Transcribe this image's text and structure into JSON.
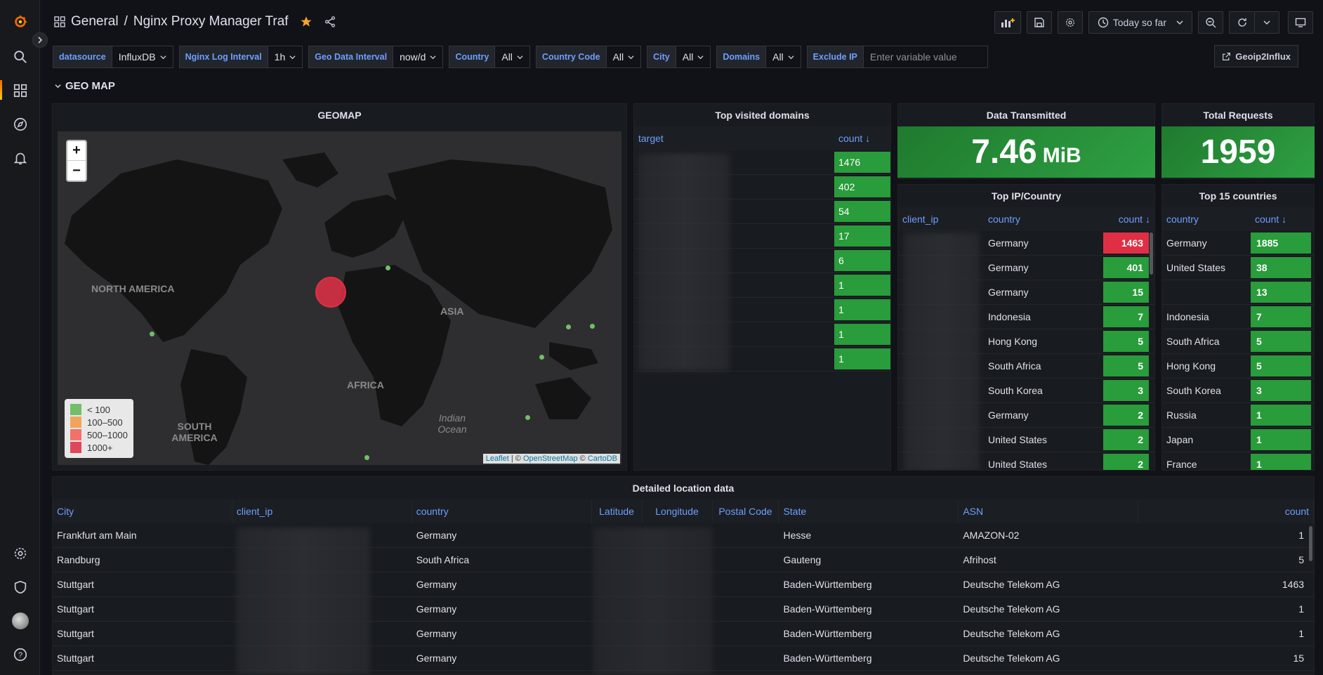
{
  "breadcrumb": {
    "folder": "General",
    "separator": "/",
    "title": "Nginx Proxy Manager Traf"
  },
  "toolbar": {
    "time_range": "Today so far"
  },
  "variables": [
    {
      "label": "datasource",
      "value": "InfluxDB"
    },
    {
      "label": "Nginx Log Interval",
      "value": "1h"
    },
    {
      "label": "Geo Data Interval",
      "value": "now/d"
    },
    {
      "label": "Country",
      "value": "All"
    },
    {
      "label": "Country Code",
      "value": "All"
    },
    {
      "label": "City",
      "value": "All"
    },
    {
      "label": "Domains",
      "value": "All"
    }
  ],
  "exclude_ip": {
    "label": "Exclude IP",
    "placeholder": "Enter variable value"
  },
  "link_button": "Geoip2Influx",
  "row_title": "GEO MAP",
  "geomap": {
    "title": "GEOMAP",
    "labels": {
      "north_america": "NORTH AMERICA",
      "south_america": "SOUTH AMERICA",
      "africa": "AFRICA",
      "asia": "ASIA",
      "indian_ocean": "Indian Ocean"
    },
    "legend": [
      {
        "label": "< 100",
        "color": "#73bf69"
      },
      {
        "label": "100–500",
        "color": "#f2a55a"
      },
      {
        "label": "500–1000",
        "color": "#f2716b"
      },
      {
        "label": "1000+",
        "color": "#e0475a"
      }
    ],
    "attribution": {
      "leaflet": "Leaflet",
      "osm": "OpenStreetMap",
      "carto": "CartoDB",
      "sep1": " | © ",
      "sep2": " © "
    }
  },
  "top_domains": {
    "title": "Top visited domains",
    "col_target": "target",
    "col_count": "count",
    "counts": [
      "1476",
      "402",
      "54",
      "17",
      "6",
      "1",
      "1",
      "1",
      "1"
    ]
  },
  "data_transmitted": {
    "title": "Data Transmitted",
    "value": "7.46",
    "unit": "MiB"
  },
  "total_requests": {
    "title": "Total Requests",
    "value": "1959"
  },
  "top_ip_country": {
    "title": "Top IP/Country",
    "col_ip": "client_ip",
    "col_country": "country",
    "col_count": "count",
    "rows": [
      {
        "country": "Germany",
        "count": "1463",
        "hot": true
      },
      {
        "country": "Germany",
        "count": "401"
      },
      {
        "country": "Germany",
        "count": "15"
      },
      {
        "country": "Indonesia",
        "count": "7"
      },
      {
        "country": "Hong Kong",
        "count": "5"
      },
      {
        "country": "South Africa",
        "count": "5"
      },
      {
        "country": "South Korea",
        "count": "3"
      },
      {
        "country": "Germany",
        "count": "2"
      },
      {
        "country": "United States",
        "count": "2"
      },
      {
        "country": "United States",
        "count": "2"
      }
    ]
  },
  "top_countries": {
    "title": "Top 15 countries",
    "col_country": "country",
    "col_count": "count",
    "rows": [
      {
        "country": "Germany",
        "count": "1885"
      },
      {
        "country": "United States",
        "count": "38"
      },
      {
        "country": "",
        "count": "13"
      },
      {
        "country": "Indonesia",
        "count": "7"
      },
      {
        "country": "South Africa",
        "count": "5"
      },
      {
        "country": "Hong Kong",
        "count": "5"
      },
      {
        "country": "South Korea",
        "count": "3"
      },
      {
        "country": "Russia",
        "count": "1"
      },
      {
        "country": "Japan",
        "count": "1"
      },
      {
        "country": "France",
        "count": "1"
      }
    ]
  },
  "detailed": {
    "title": "Detailed location data",
    "columns": [
      "City",
      "client_ip",
      "country",
      "Latitude",
      "Longitude",
      "Postal Code",
      "State",
      "ASN",
      "count"
    ],
    "rows": [
      {
        "city": "Frankfurt am Main",
        "country": "Germany",
        "state": "Hesse",
        "asn": "AMAZON-02",
        "count": "1"
      },
      {
        "city": "Randburg",
        "country": "South Africa",
        "state": "Gauteng",
        "asn": "Afrihost",
        "count": "5"
      },
      {
        "city": "Stuttgart",
        "country": "Germany",
        "state": "Baden-Württemberg",
        "asn": "Deutsche Telekom AG",
        "count": "1463"
      },
      {
        "city": "Stuttgart",
        "country": "Germany",
        "state": "Baden-Württemberg",
        "asn": "Deutsche Telekom AG",
        "count": "1"
      },
      {
        "city": "Stuttgart",
        "country": "Germany",
        "state": "Baden-Württemberg",
        "asn": "Deutsche Telekom AG",
        "count": "1"
      },
      {
        "city": "Stuttgart",
        "country": "Germany",
        "state": "Baden-Württemberg",
        "asn": "Deutsche Telekom AG",
        "count": "15"
      }
    ]
  },
  "colors": {
    "accent": "#6e9fff",
    "green": "#299c3b",
    "red": "#e02f44",
    "star": "#f5a623"
  }
}
